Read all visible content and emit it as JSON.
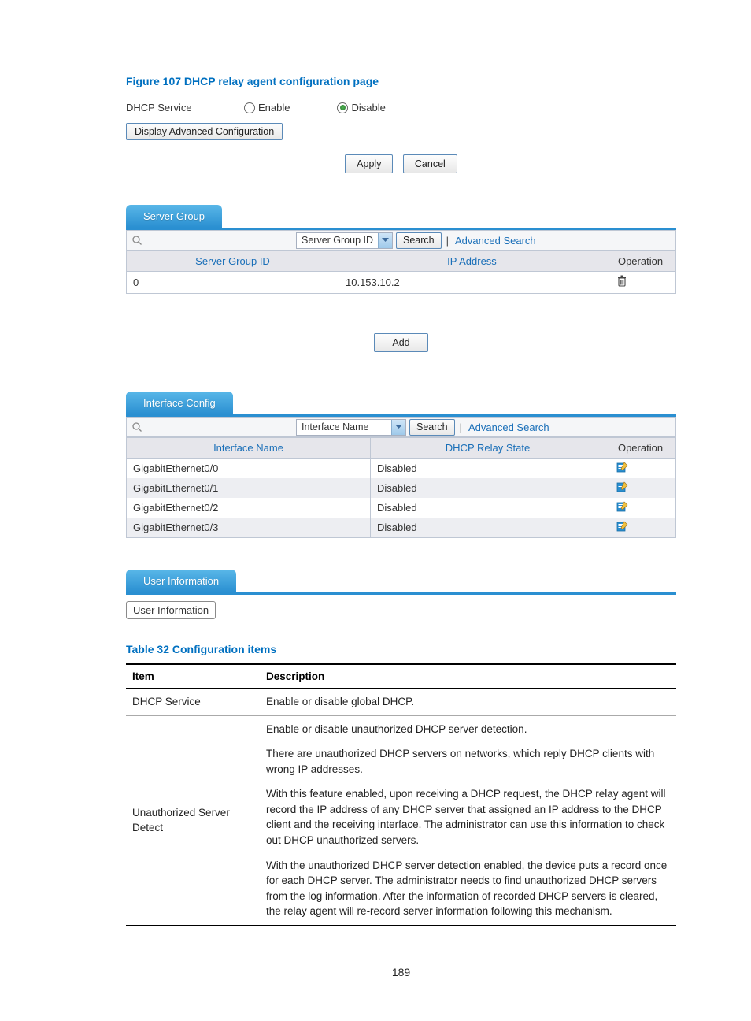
{
  "figure": {
    "title": "Figure 107 DHCP relay agent configuration page",
    "dhcp_label": "DHCP Service",
    "enable_label": "Enable",
    "disable_label": "Disable",
    "adv_config_btn": "Display Advanced Configuration",
    "apply_btn": "Apply",
    "cancel_btn": "Cancel"
  },
  "server_group": {
    "tab": "Server Group",
    "select_label": "Server Group ID",
    "search_btn": "Search",
    "adv_search": "Advanced Search",
    "headers": {
      "id": "Server Group ID",
      "ip": "IP Address",
      "op": "Operation"
    },
    "rows": [
      {
        "id": "0",
        "ip": "10.153.10.2"
      }
    ],
    "add_btn": "Add"
  },
  "interface": {
    "tab": "Interface Config",
    "select_label": "Interface Name",
    "search_btn": "Search",
    "adv_search": "Advanced Search",
    "headers": {
      "name": "Interface Name",
      "state": "DHCP Relay State",
      "op": "Operation"
    },
    "rows": [
      {
        "name": "GigabitEthernet0/0",
        "state": "Disabled"
      },
      {
        "name": "GigabitEthernet0/1",
        "state": "Disabled"
      },
      {
        "name": "GigabitEthernet0/2",
        "state": "Disabled"
      },
      {
        "name": "GigabitEthernet0/3",
        "state": "Disabled"
      }
    ]
  },
  "user_info": {
    "tab": "User Information",
    "btn": "User Information"
  },
  "config_table": {
    "title": "Table 32 Configuration items",
    "headers": {
      "item": "Item",
      "desc": "Description"
    },
    "rows": [
      {
        "item": "DHCP Service",
        "paras": [
          "Enable or disable global DHCP."
        ]
      },
      {
        "item": "Unauthorized Server Detect",
        "paras": [
          "Enable or disable unauthorized DHCP server detection.",
          "There are unauthorized DHCP servers on networks, which reply DHCP clients with wrong IP addresses.",
          "With this feature enabled, upon receiving a DHCP request, the DHCP relay agent will record the IP address of any DHCP server that assigned an IP address to the DHCP client and the receiving interface. The administrator can use this information to check out DHCP unauthorized servers.",
          "With the unauthorized DHCP server detection enabled, the device puts a record once for each DHCP server. The administrator needs to find unauthorized DHCP servers from the log information. After the information of recorded DHCP servers is cleared, the relay agent will re-record server information following this mechanism."
        ]
      }
    ]
  },
  "page_number": "189",
  "colors": {
    "heading": "#0070c0",
    "tab_gradient_top": "#59b7e8",
    "tab_gradient_bottom": "#2a8fd1",
    "link": "#1a6fb8",
    "border": "#bfc7d4"
  }
}
